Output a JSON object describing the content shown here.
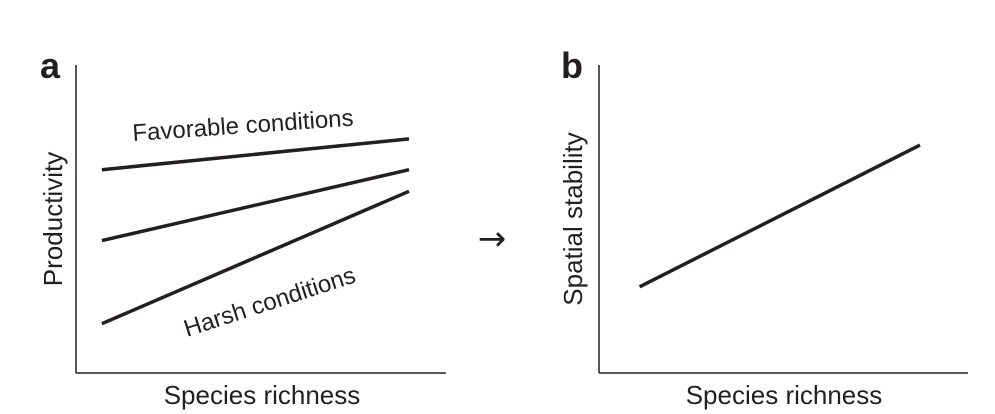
{
  "chart_data": [
    {
      "panel": "a",
      "type": "line",
      "xlabel": "Species richness",
      "ylabel": "Productivity",
      "xlim": [
        0,
        1
      ],
      "ylim": [
        0,
        1
      ],
      "grid": false,
      "series": [
        {
          "x": [
            0.07,
            0.9
          ],
          "y": [
            0.66,
            0.76
          ]
        },
        {
          "x": [
            0.07,
            0.9
          ],
          "y": [
            0.43,
            0.66
          ]
        },
        {
          "x": [
            0.07,
            0.9
          ],
          "y": [
            0.16,
            0.59
          ]
        }
      ],
      "annotations": [
        {
          "text": "Favorable conditions",
          "series": 0
        },
        {
          "text": "Harsh conditions",
          "series": 2
        }
      ]
    },
    {
      "panel": "b",
      "type": "line",
      "xlabel": "Species richness",
      "ylabel": "Spatial stability",
      "xlim": [
        0,
        1
      ],
      "ylim": [
        0,
        1
      ],
      "grid": false,
      "series": [
        {
          "x": [
            0.11,
            0.87
          ],
          "y": [
            0.28,
            0.74
          ]
        }
      ]
    }
  ],
  "arrow_glyph": "→"
}
